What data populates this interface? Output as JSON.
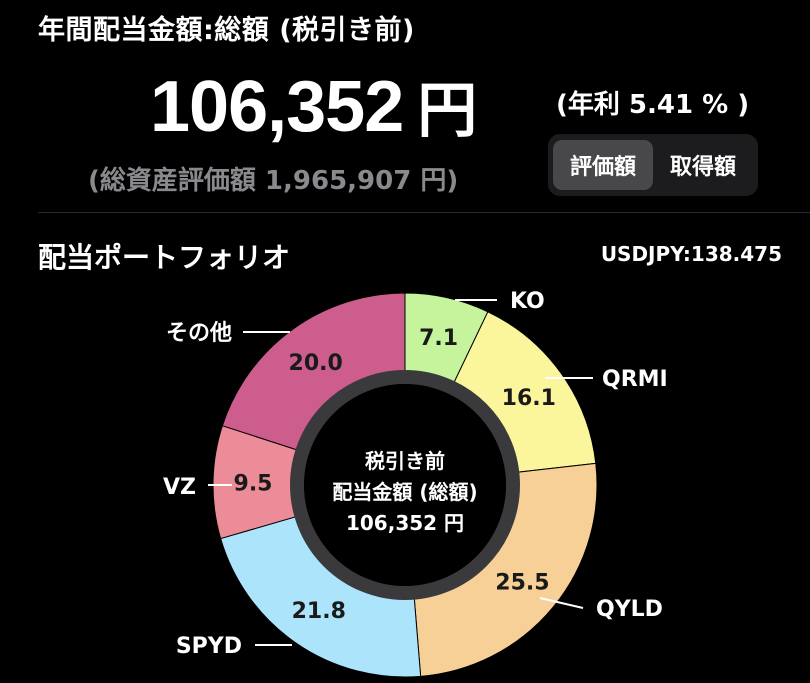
{
  "header": {
    "title": "年間配当金額:総額 (税引き前)",
    "amount_value": "106,352",
    "amount_unit": "円",
    "yield_text": "(年利 5.41 % )",
    "asset_total_text": "(総資産評価額 1,965,907 円)"
  },
  "toggle": {
    "options": [
      "評価額",
      "取得額"
    ],
    "selected_index": 0
  },
  "section": {
    "title": "配当ポートフォリオ",
    "fx_rate": "USDJPY:138.475"
  },
  "center_label": {
    "line1": "税引き前",
    "line2": "配当金額 (総額)",
    "line3": "106,352 円"
  },
  "chart_data": {
    "type": "pie",
    "donut": true,
    "slices": [
      {
        "name": "KO",
        "value": 7.1,
        "color": "#c5f49d"
      },
      {
        "name": "QRMI",
        "value": 16.1,
        "color": "#fbf59c"
      },
      {
        "name": "QYLD",
        "value": 25.5,
        "color": "#f6d096"
      },
      {
        "name": "SPYD",
        "value": 21.8,
        "color": "#abe4fb"
      },
      {
        "name": "VZ",
        "value": 9.5,
        "color": "#ec8c98"
      },
      {
        "name": "その他",
        "value": 20.0,
        "color": "#cc5d8d"
      }
    ]
  }
}
